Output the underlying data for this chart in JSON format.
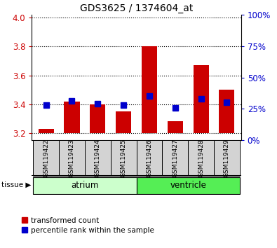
{
  "title": "GDS3625 / 1374604_at",
  "samples": [
    "GSM119422",
    "GSM119423",
    "GSM119424",
    "GSM119425",
    "GSM119426",
    "GSM119427",
    "GSM119428",
    "GSM119429"
  ],
  "red_values": [
    3.23,
    3.42,
    3.4,
    3.35,
    3.8,
    3.28,
    3.67,
    3.5
  ],
  "blue_values": [
    3.395,
    3.425,
    3.405,
    3.395,
    3.455,
    3.375,
    3.435,
    3.415
  ],
  "ylim_left": [
    3.15,
    4.02
  ],
  "ylim_right": [
    0,
    100
  ],
  "yticks_left": [
    3.2,
    3.4,
    3.6,
    3.8,
    4.0
  ],
  "yticks_right": [
    0,
    25,
    50,
    75,
    100
  ],
  "ytick_labels_right": [
    "0%",
    "25%",
    "50%",
    "75%",
    "100%"
  ],
  "tissue_groups": {
    "atrium": [
      0,
      1,
      2,
      3
    ],
    "ventricle": [
      4,
      5,
      6,
      7
    ]
  },
  "atrium_color": "#ccffcc",
  "ventricle_color": "#55ee55",
  "sample_bg_color": "#d3d3d3",
  "red_bar_color": "#cc0000",
  "blue_marker_color": "#0000cc",
  "grid_color": "#000000",
  "title_color": "#000000",
  "left_tick_color": "#cc0000",
  "right_tick_color": "#0000cc",
  "legend_red_label": "transformed count",
  "legend_blue_label": "percentile rank within the sample",
  "bar_bottom": 3.2,
  "bar_width": 0.6,
  "blue_marker_size": 6
}
